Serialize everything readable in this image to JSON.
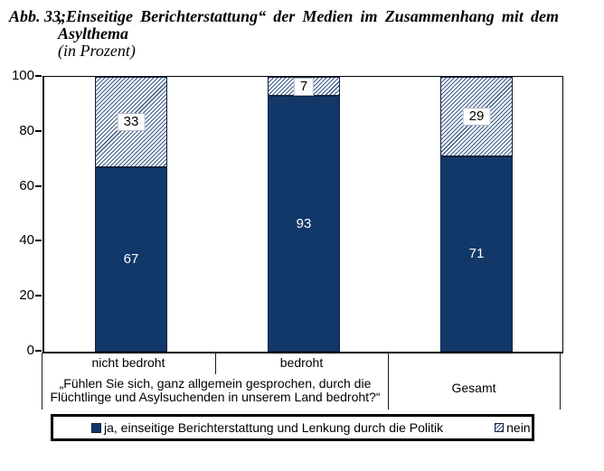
{
  "figure": {
    "label": "Abb. 33:",
    "title_line1": "„Einseitige Berichterstattung“ der Medien im Zusammenhang mit dem",
    "title_line2": "Asylthema",
    "subtitle": "(in Prozent)"
  },
  "chart_data": {
    "type": "bar",
    "stacked": true,
    "unit": "percent",
    "categories": [
      "nicht bedroht",
      "bedroht",
      "Gesamt"
    ],
    "series": [
      {
        "name": "ja, einseitige Berichterstattung und Lenkung durch die Politik",
        "values": [
          67,
          93,
          71
        ],
        "color": "#12386a",
        "pattern": "solid",
        "label_color": "#ffffff"
      },
      {
        "name": "nein",
        "values": [
          33,
          7,
          29
        ],
        "color": "#3a5a87",
        "pattern": "diagonal-hatch",
        "label_color": "#000000"
      }
    ],
    "ylim": [
      0,
      100
    ],
    "yticks": [
      0,
      20,
      40,
      60,
      80,
      100
    ],
    "grid": false,
    "legend_position": "bottom",
    "x_axis_question_lines": [
      "„Fühlen Sie sich, ganz allgemein gesprochen, durch die",
      "Flüchtlinge und Asylsuchenden in unserem Land bedroht?“"
    ]
  }
}
